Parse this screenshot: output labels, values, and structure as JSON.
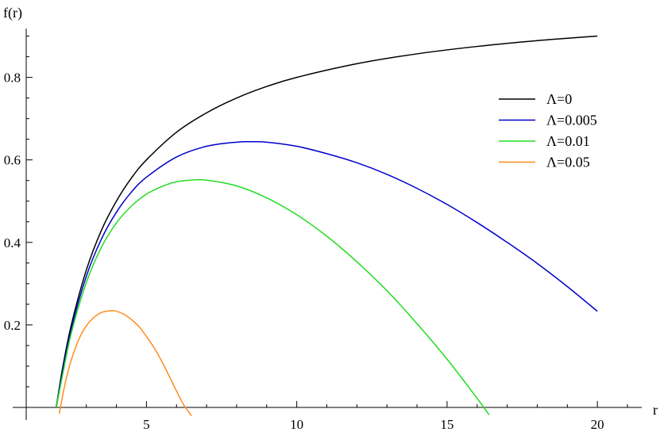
{
  "chart_data": {
    "type": "line",
    "title": "",
    "xlabel": "r",
    "ylabel": "f(r)",
    "xlim": [
      1,
      21
    ],
    "ylim": [
      0,
      0.92
    ],
    "x_ticks": [
      5,
      10,
      15,
      20
    ],
    "x_tick_labels": [
      "5",
      "10",
      "15",
      "20"
    ],
    "y_ticks": [
      0.2,
      0.4,
      0.6,
      0.8
    ],
    "y_tick_labels": [
      "0.2",
      "0.4",
      "0.6",
      "0.8"
    ],
    "grid": false,
    "legend_position": "top-right",
    "series": [
      {
        "name": "Λ=0",
        "color": "#000000",
        "x": [
          2.0,
          2.2,
          2.5,
          3,
          3.5,
          4,
          4.5,
          5,
          6,
          7,
          8,
          9,
          10,
          12,
          14,
          16,
          18,
          20
        ],
        "y": [
          0.0,
          0.091,
          0.2,
          0.333,
          0.429,
          0.5,
          0.556,
          0.6,
          0.667,
          0.714,
          0.75,
          0.778,
          0.8,
          0.833,
          0.857,
          0.875,
          0.889,
          0.9
        ]
      },
      {
        "name": "Λ=0.005",
        "color": "#0000cc",
        "x": [
          2.0,
          2.2,
          2.5,
          3,
          3.5,
          4,
          4.5,
          5,
          6,
          7,
          8,
          8.5,
          9,
          10,
          11,
          12,
          13,
          14,
          15,
          16,
          17,
          18,
          19,
          20
        ],
        "y": [
          0.0,
          0.083,
          0.19,
          0.318,
          0.408,
          0.473,
          0.522,
          0.558,
          0.607,
          0.633,
          0.643,
          0.644,
          0.643,
          0.633,
          0.615,
          0.593,
          0.565,
          0.531,
          0.492,
          0.448,
          0.4,
          0.349,
          0.293,
          0.233
        ]
      },
      {
        "name": "Λ=0.01",
        "color": "#22dd22",
        "x": [
          2.0,
          2.2,
          2.5,
          3,
          3.5,
          4,
          4.5,
          5,
          5.5,
          6,
          6.5,
          7,
          8,
          9,
          10,
          11,
          12,
          13,
          14,
          15,
          16,
          16.4
        ],
        "y": [
          0.0,
          0.075,
          0.18,
          0.303,
          0.388,
          0.447,
          0.488,
          0.517,
          0.535,
          0.547,
          0.551,
          0.551,
          0.537,
          0.508,
          0.467,
          0.415,
          0.353,
          0.283,
          0.203,
          0.117,
          0.022,
          -0.018
        ]
      },
      {
        "name": "Λ=0.05",
        "color": "#ff8c1a",
        "x": [
          2.1,
          2.3,
          2.5,
          2.75,
          3.0,
          3.25,
          3.5,
          3.75,
          3.95,
          4.25,
          4.5,
          4.75,
          5.0,
          5.25,
          5.5,
          5.75,
          6.0,
          6.25,
          6.5
        ],
        "y": [
          -0.015,
          0.06,
          0.115,
          0.165,
          0.198,
          0.218,
          0.23,
          0.234,
          0.234,
          0.226,
          0.213,
          0.196,
          0.172,
          0.145,
          0.113,
          0.077,
          0.04,
          0.005,
          -0.02
        ]
      }
    ]
  }
}
